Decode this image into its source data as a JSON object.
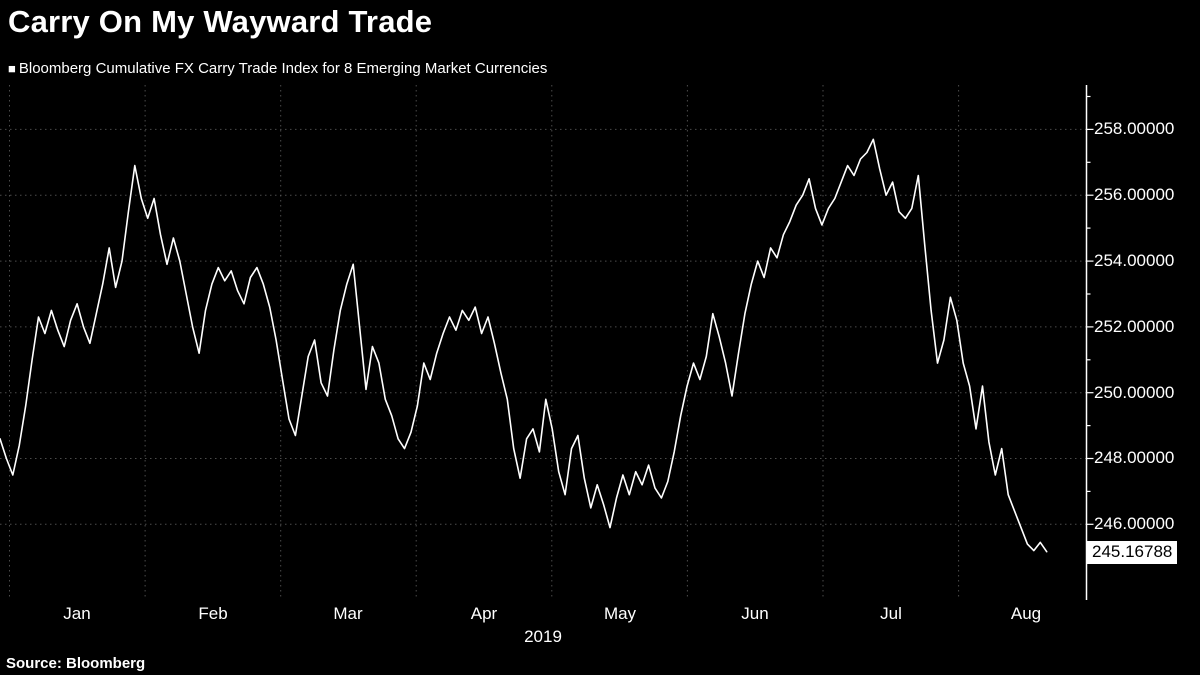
{
  "header": {
    "title": "Carry On My Wayward Trade",
    "legend_marker": "■",
    "legend_label": "Bloomberg Cumulative FX Carry Trade Index for 8 Emerging Market Currencies"
  },
  "footer": {
    "source": "Source: Bloomberg"
  },
  "colors": {
    "background": "#000000",
    "line": "#ffffff",
    "grid": "#5a5a5a",
    "text": "#ffffff",
    "badge_bg": "#ffffff",
    "badge_text": "#000000"
  },
  "chart_data": {
    "type": "line",
    "title": "Carry On My Wayward Trade",
    "series_name": "Bloomberg Cumulative FX Carry Trade Index for 8 Emerging Market Currencies",
    "x_axis_sublabel": "2019",
    "x_tick_labels": [
      "Jan",
      "Feb",
      "Mar",
      "Apr",
      "May",
      "Jun",
      "Jul",
      "Aug"
    ],
    "month_boundaries": [
      0,
      1,
      2,
      3,
      4,
      5,
      6,
      7
    ],
    "xlim": [
      -0.07,
      7.94
    ],
    "ylim": [
      243.7,
      259.35
    ],
    "yticks": [
      246,
      248,
      250,
      252,
      254,
      256,
      258
    ],
    "yticks_minor": [
      245,
      247,
      249,
      251,
      253,
      255,
      257,
      259
    ],
    "ytick_labels": [
      "246.00000",
      "248.00000",
      "250.00000",
      "252.00000",
      "254.00000",
      "256.00000",
      "258.00000"
    ],
    "grid": true,
    "legend_position": "top-left",
    "last_value": 245.16788,
    "last_value_label": "245.16788",
    "x_start": -0.07,
    "x_end": 7.65,
    "series": [
      {
        "name": "FX Carry Trade Index",
        "values": [
          248.6,
          248.0,
          247.5,
          248.4,
          249.6,
          251.0,
          252.3,
          251.8,
          252.5,
          251.9,
          251.4,
          252.2,
          252.7,
          252.0,
          251.5,
          252.4,
          253.3,
          254.4,
          253.2,
          254.0,
          255.5,
          256.9,
          255.9,
          255.3,
          255.9,
          254.8,
          253.9,
          254.7,
          254.0,
          253.0,
          252.0,
          251.2,
          252.5,
          253.3,
          253.8,
          253.4,
          253.7,
          253.1,
          252.7,
          253.5,
          253.8,
          253.3,
          252.6,
          251.6,
          250.4,
          249.2,
          248.7,
          249.9,
          251.1,
          251.6,
          250.3,
          249.9,
          251.3,
          252.5,
          253.3,
          253.9,
          252.0,
          250.1,
          251.4,
          250.9,
          249.8,
          249.3,
          248.6,
          248.3,
          248.8,
          249.6,
          250.9,
          250.4,
          251.2,
          251.8,
          252.3,
          251.9,
          252.5,
          252.2,
          252.6,
          251.8,
          252.3,
          251.5,
          250.6,
          249.8,
          248.3,
          247.4,
          248.6,
          248.9,
          248.2,
          249.8,
          248.9,
          247.6,
          246.9,
          248.3,
          248.7,
          247.4,
          246.5,
          247.2,
          246.6,
          245.9,
          246.8,
          247.5,
          246.9,
          247.6,
          247.2,
          247.8,
          247.1,
          246.8,
          247.3,
          248.2,
          249.3,
          250.2,
          250.9,
          250.4,
          251.1,
          252.4,
          251.7,
          250.9,
          249.9,
          251.2,
          252.4,
          253.3,
          254.0,
          253.5,
          254.4,
          254.1,
          254.8,
          255.2,
          255.7,
          256.0,
          256.5,
          255.6,
          255.1,
          255.6,
          255.9,
          256.4,
          256.9,
          256.6,
          257.1,
          257.3,
          257.7,
          256.8,
          256.0,
          256.4,
          255.5,
          255.3,
          255.6,
          256.6,
          254.5,
          252.5,
          250.9,
          251.6,
          252.9,
          252.2,
          250.9,
          250.2,
          248.9,
          250.2,
          248.5,
          247.5,
          248.3,
          246.9,
          246.4,
          245.9,
          245.4,
          245.2,
          245.45,
          245.16788
        ]
      }
    ]
  }
}
